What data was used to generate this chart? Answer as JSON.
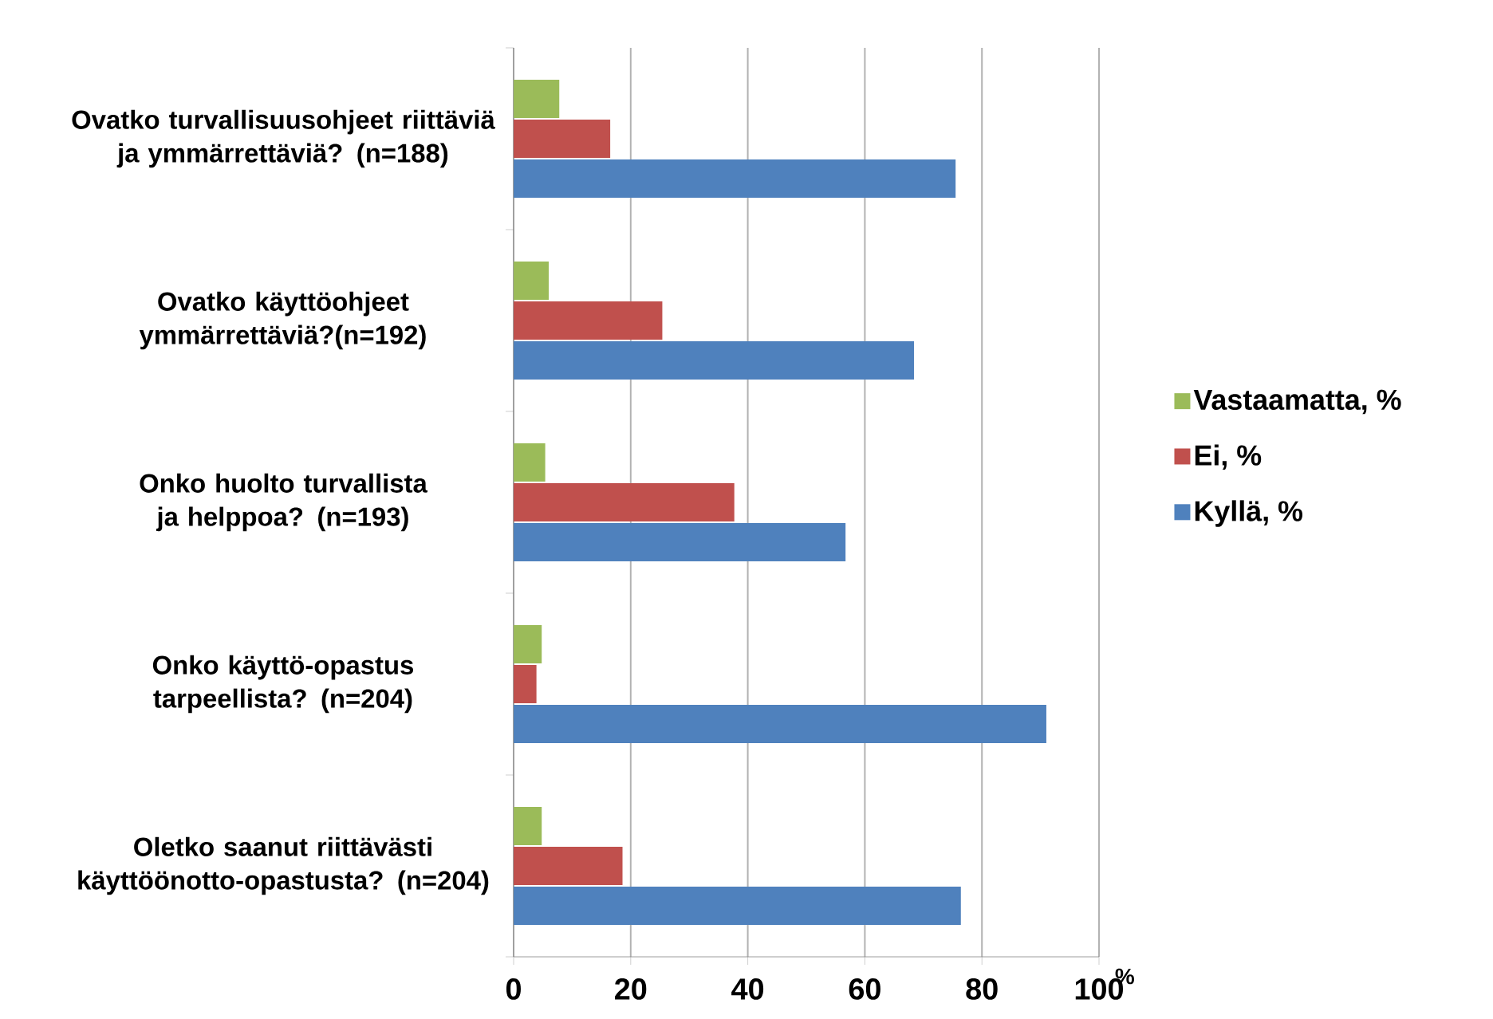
{
  "chart_data": {
    "type": "bar",
    "orientation": "horizontal",
    "categories": [
      "Ovatko turvallisuusohjeet riittäviä ja ymmärrettäviä? (n=188)",
      "Ovatko käyttöohjeet ymmärrettäviä?(n=192)",
      "Onko huolto turvallista ja helppoa? (n=193)",
      "Onko käyttö-opastus tarpeellista? (n=204)",
      "Oletko saanut riittävästi käyttöönotto-opastusta? (n=204)"
    ],
    "series": [
      {
        "name": "Vastaamatta, %",
        "color": "#9bbb59",
        "values": [
          7.8,
          6.0,
          5.4,
          4.8,
          4.8
        ]
      },
      {
        "name": "Ei, %",
        "color": "#c0504d",
        "values": [
          16.5,
          25.4,
          37.7,
          3.9,
          18.6
        ]
      },
      {
        "name": "Kyllä, %",
        "color": "#4f81bd",
        "values": [
          75.5,
          68.4,
          56.7,
          91.0,
          76.4
        ]
      }
    ],
    "xlabel": "%",
    "xlim": [
      0,
      100
    ],
    "xticks": [
      0,
      20,
      40,
      60,
      80,
      100
    ],
    "grid": "x",
    "legend": "right"
  }
}
